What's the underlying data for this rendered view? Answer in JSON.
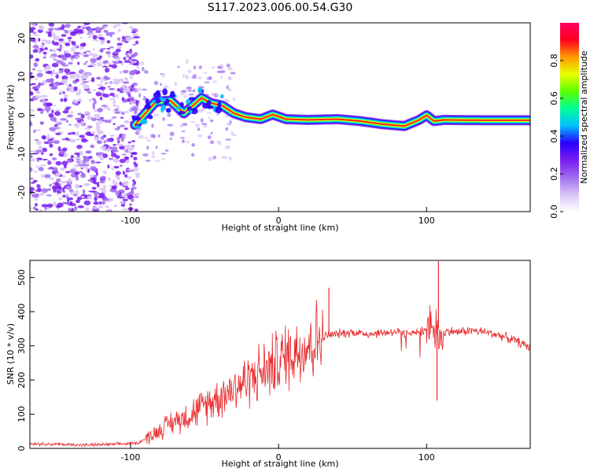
{
  "title": "S117.2023.006.00.54.G30",
  "chart_data": [
    {
      "type": "heatmap",
      "xlabel": "Height of straight line (km)",
      "ylabel": "Frequency (Hz)",
      "xlim": [
        -168,
        170
      ],
      "ylim": [
        -25,
        24
      ],
      "x_ticks": [
        -100,
        0,
        100
      ],
      "y_ticks": [
        20,
        10,
        0,
        -10,
        -20
      ],
      "grid": false,
      "colorbar": {
        "label": "Normalized spectral amplitude",
        "range": [
          0,
          1
        ],
        "ticks": [
          0.0,
          0.2,
          0.4,
          0.6,
          0.8
        ],
        "colormap": [
          "#ffffff",
          "#d8c4f6",
          "#a06cf0",
          "#7a1cf0",
          "#2a00ff",
          "#00bfff",
          "#00ff9a",
          "#5aff00",
          "#e8ff00",
          "#ff9a00",
          "#ff0020",
          "#ff0060"
        ]
      },
      "ridge_points": [
        {
          "x": -97,
          "y": -2.5
        },
        {
          "x": -90,
          "y": 0.5
        },
        {
          "x": -83,
          "y": 3.5
        },
        {
          "x": -73,
          "y": 3.8
        },
        {
          "x": -64,
          "y": 0.5
        },
        {
          "x": -58,
          "y": 2.5
        },
        {
          "x": -52,
          "y": 4.5
        },
        {
          "x": -46,
          "y": 3.2
        },
        {
          "x": -38,
          "y": 2.5
        },
        {
          "x": -30,
          "y": 0.5
        },
        {
          "x": -22,
          "y": -0.5
        },
        {
          "x": -12,
          "y": -1.0
        },
        {
          "x": -4,
          "y": 0.2
        },
        {
          "x": 5,
          "y": -1.0
        },
        {
          "x": 20,
          "y": -1.2
        },
        {
          "x": 40,
          "y": -1.0
        },
        {
          "x": 55,
          "y": -1.5
        },
        {
          "x": 70,
          "y": -2.3
        },
        {
          "x": 85,
          "y": -2.8
        },
        {
          "x": 95,
          "y": -1.2
        },
        {
          "x": 100,
          "y": 0.0
        },
        {
          "x": 105,
          "y": -1.5
        },
        {
          "x": 112,
          "y": -1.2
        },
        {
          "x": 140,
          "y": -1.3
        },
        {
          "x": 170,
          "y": -1.3
        }
      ]
    },
    {
      "type": "line",
      "xlabel": "Height of straight line (km)",
      "ylabel": "SNR (10 * v/v)",
      "xlim": [
        -168,
        170
      ],
      "ylim": [
        0,
        550
      ],
      "x_ticks": [
        -100,
        0,
        100
      ],
      "y_ticks": [
        0,
        100,
        200,
        300,
        400,
        500
      ],
      "grid": false,
      "series": [
        {
          "color": "#e8282a",
          "x": [
            -168,
            -150,
            -130,
            -110,
            -95,
            -85,
            -75,
            -65,
            -55,
            -45,
            -35,
            -25,
            -15,
            -5,
            5,
            15,
            25,
            33,
            40,
            50,
            60,
            70,
            80,
            90,
            95,
            100,
            103,
            107,
            110,
            115,
            120,
            130,
            140,
            150,
            160,
            170
          ],
          "y": [
            14,
            12,
            10,
            12,
            16,
            40,
            70,
            90,
            110,
            140,
            165,
            190,
            215,
            240,
            270,
            295,
            315,
            330,
            335,
            340,
            335,
            338,
            342,
            335,
            340,
            345,
            350,
            360,
            330,
            345,
            340,
            345,
            340,
            330,
            315,
            295
          ]
        }
      ],
      "annotations": [
        {
          "x": 34,
          "y": 470
        },
        {
          "x": 108,
          "y": 548
        },
        {
          "x": 107,
          "y": 140
        }
      ]
    }
  ]
}
